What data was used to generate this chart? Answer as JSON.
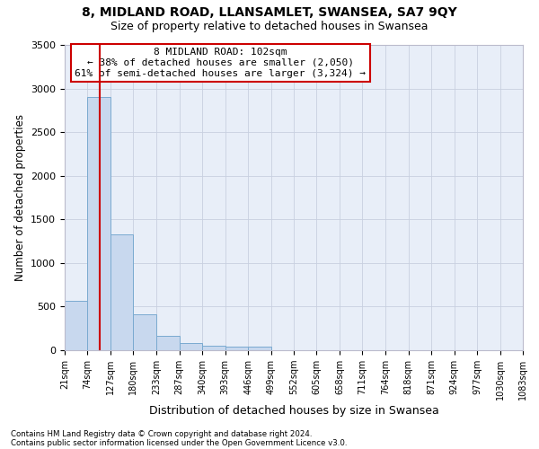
{
  "title1": "8, MIDLAND ROAD, LLANSAMLET, SWANSEA, SA7 9QY",
  "title2": "Size of property relative to detached houses in Swansea",
  "xlabel": "Distribution of detached houses by size in Swansea",
  "ylabel": "Number of detached properties",
  "footnote1": "Contains HM Land Registry data © Crown copyright and database right 2024.",
  "footnote2": "Contains public sector information licensed under the Open Government Licence v3.0.",
  "annotation_line1": "8 MIDLAND ROAD: 102sqm",
  "annotation_line2": "← 38% of detached houses are smaller (2,050)",
  "annotation_line3": "61% of semi-detached houses are larger (3,324) →",
  "bar_edges": [
    21,
    74,
    127,
    180,
    233,
    287,
    340,
    393,
    446,
    499,
    552,
    605,
    658,
    711,
    764,
    818,
    871,
    924,
    977,
    1030,
    1083
  ],
  "bar_heights": [
    570,
    2900,
    1330,
    410,
    165,
    80,
    55,
    45,
    40,
    0,
    0,
    0,
    0,
    0,
    0,
    0,
    0,
    0,
    0,
    0
  ],
  "bar_color": "#c8d8ee",
  "bar_edge_color": "#7aaad0",
  "red_line_x": 102,
  "ylim": [
    0,
    3500
  ],
  "yticks": [
    0,
    500,
    1000,
    1500,
    2000,
    2500,
    3000,
    3500
  ],
  "grid_color": "#c8d0e0",
  "bg_color": "#e8eef8",
  "fig_bg_color": "#ffffff",
  "annotation_box_color": "#ffffff",
  "annotation_box_edge": "#cc0000",
  "red_line_color": "#cc0000",
  "title1_fontsize": 10,
  "title2_fontsize": 9,
  "xlabel_fontsize": 9,
  "ylabel_fontsize": 8.5,
  "annot_fontsize": 8
}
